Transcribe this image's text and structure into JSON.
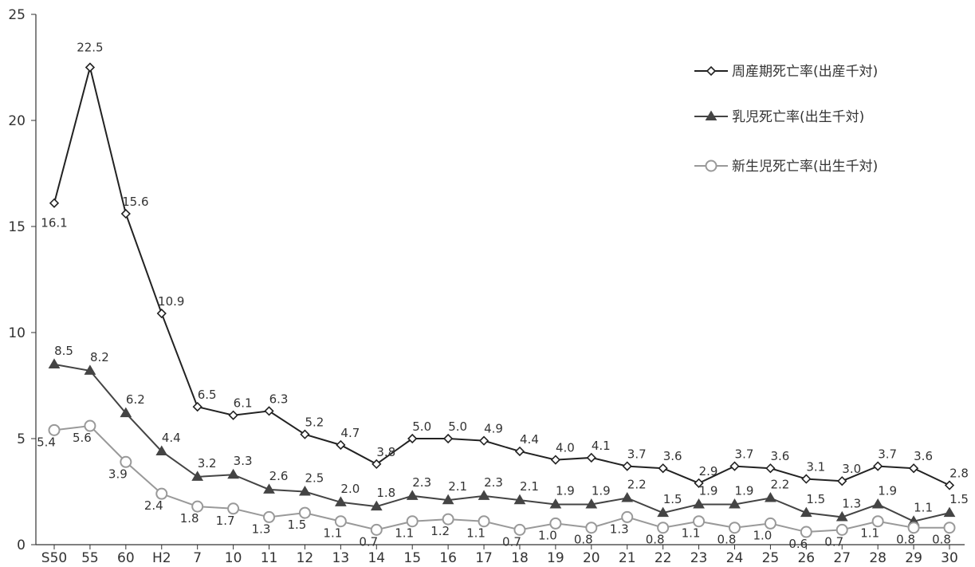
{
  "chart_data": {
    "type": "line",
    "categories": [
      "S50",
      "55",
      "60",
      "H2",
      "7",
      "10",
      "11",
      "12",
      "13",
      "14",
      "15",
      "16",
      "17",
      "18",
      "19",
      "20",
      "21",
      "22",
      "23",
      "24",
      "25",
      "26",
      "27",
      "28",
      "29",
      "30"
    ],
    "ylim": [
      0,
      25
    ],
    "yticks": [
      "0",
      "5",
      "10",
      "15",
      "20",
      "25"
    ],
    "grid": false,
    "legend_position": "top-right",
    "series": [
      {
        "name": "周産期死亡率(出産千対)",
        "marker": "diamond-open",
        "color": "#222222",
        "values": [
          16.1,
          22.5,
          15.6,
          10.9,
          6.5,
          6.1,
          6.3,
          5.2,
          4.7,
          3.8,
          5.0,
          5.0,
          4.9,
          4.4,
          4.0,
          4.1,
          3.7,
          3.6,
          2.9,
          3.7,
          3.6,
          3.1,
          3.0,
          3.7,
          3.6,
          2.8
        ],
        "labels": [
          "16.1",
          "22.5",
          "15.6",
          "10.9",
          "6.5",
          "6.1",
          "6.3",
          "5.2",
          "4.7",
          "3.8",
          "5.0",
          "5.0",
          "4.9",
          "4.4",
          "4.0",
          "4.1",
          "3.7",
          "3.6",
          "2.9",
          "3.7",
          "3.6",
          "3.1",
          "3.0",
          "3.7",
          "3.6",
          "2.8"
        ]
      },
      {
        "name": "乳児死亡率(出生千対)",
        "marker": "triangle-filled",
        "color": "#444444",
        "values": [
          8.5,
          8.2,
          6.2,
          4.4,
          3.2,
          3.3,
          2.6,
          2.5,
          2.0,
          1.8,
          2.3,
          2.1,
          2.3,
          2.1,
          1.9,
          1.9,
          2.2,
          1.5,
          1.9,
          1.9,
          2.2,
          1.5,
          1.3,
          1.9,
          1.1,
          1.5
        ],
        "labels": [
          "8.5",
          "8.2",
          "6.2",
          "4.4",
          "3.2",
          "3.3",
          "2.6",
          "2.5",
          "2.0",
          "1.8",
          "2.3",
          "2.1",
          "2.3",
          "2.1",
          "1.9",
          "1.9",
          "2.2",
          "1.5",
          "1.9",
          "1.9",
          "2.2",
          "1.5",
          "1.3",
          "1.9",
          "1.1",
          "1.5"
        ]
      },
      {
        "name": "新生児死亡率(出生千対)",
        "marker": "circle-open",
        "color": "#999999",
        "values": [
          5.4,
          5.6,
          3.9,
          2.4,
          1.8,
          1.7,
          1.3,
          1.5,
          1.1,
          0.7,
          1.1,
          1.2,
          1.1,
          0.7,
          1.0,
          0.8,
          1.3,
          0.8,
          1.1,
          0.8,
          1.0,
          0.6,
          0.7,
          1.1,
          0.8,
          0.8
        ],
        "labels": [
          "5.4",
          "5.6",
          "3.9",
          "2.4",
          "1.8",
          "1.7",
          "1.3",
          "1.5",
          "1.1",
          "0.7",
          "1.1",
          "1.2",
          "1.1",
          "0.7",
          "1.0",
          "0.8",
          "1.3",
          "0.8",
          "1.1",
          "0.8",
          "1.0",
          "0.6",
          "0.7",
          "1.1",
          "0.8",
          "0.8"
        ]
      }
    ]
  }
}
